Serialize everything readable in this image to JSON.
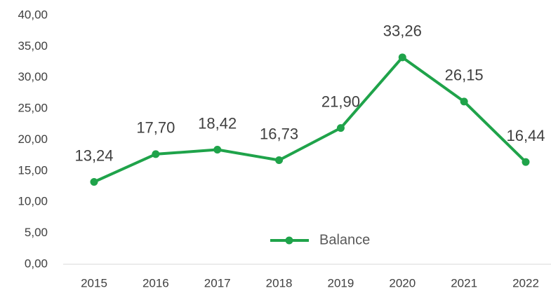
{
  "chart_data": {
    "type": "line",
    "categories": [
      "2015",
      "2016",
      "2017",
      "2018",
      "2019",
      "2020",
      "2021",
      "2022"
    ],
    "series": [
      {
        "name": "Balance",
        "color": "#1fa34a",
        "values": [
          13.24,
          17.7,
          18.42,
          16.73,
          21.9,
          33.26,
          26.15,
          16.44
        ],
        "value_labels": [
          "13,24",
          "17,70",
          "18,42",
          "16,73",
          "21,90",
          "33,26",
          "26,15",
          "16,44"
        ]
      }
    ],
    "ylim": [
      0,
      40
    ],
    "yticks": [
      {
        "value": 0,
        "label": "0,00"
      },
      {
        "value": 5,
        "label": "5,00"
      },
      {
        "value": 10,
        "label": "10,00"
      },
      {
        "value": 15,
        "label": "15,00"
      },
      {
        "value": 20,
        "label": "20,00"
      },
      {
        "value": 25,
        "label": "25,00"
      },
      {
        "value": 30,
        "label": "30,00"
      },
      {
        "value": 35,
        "label": "35,00"
      },
      {
        "value": 40,
        "label": "40,00"
      }
    ],
    "grid": false,
    "legend": "lower center"
  }
}
